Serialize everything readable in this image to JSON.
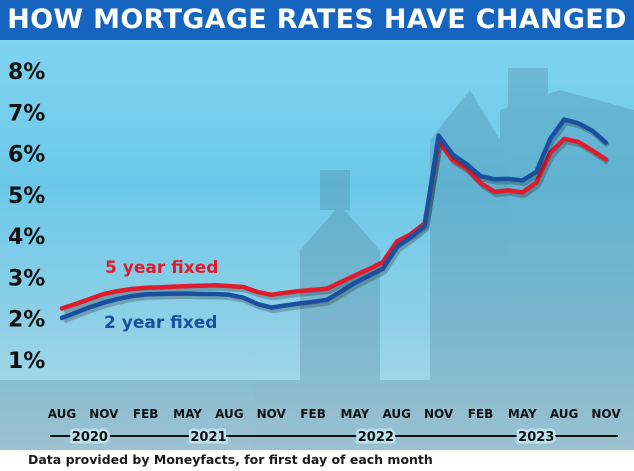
{
  "title": "HOW MORTGAGE RATES HAVE CHANGED",
  "source_note": "Data provided by Moneyfacts, for first day of each month",
  "colors": {
    "title_bg": "#1565c0",
    "five_year": "#e21b2c",
    "two_year": "#1a4fa0",
    "axis_text": "#111111"
  },
  "chart_data": {
    "type": "line",
    "title": "HOW MORTGAGE RATES HAVE CHANGED",
    "xlabel": "",
    "ylabel": "",
    "ylim": [
      0,
      8
    ],
    "y_ticks": [
      "1%",
      "2%",
      "3%",
      "4%",
      "5%",
      "6%",
      "7%",
      "8%"
    ],
    "x_tick_labels": [
      "AUG",
      "NOV",
      "FEB",
      "MAY",
      "AUG",
      "NOV",
      "FEB",
      "MAY",
      "AUG",
      "NOV",
      "FEB",
      "MAY",
      "AUG",
      "NOV"
    ],
    "year_labels": [
      "2020",
      "2021",
      "2022",
      "2023"
    ],
    "x": [
      "2020-08",
      "2020-09",
      "2020-10",
      "2020-11",
      "2020-12",
      "2021-01",
      "2021-02",
      "2021-03",
      "2021-04",
      "2021-05",
      "2021-06",
      "2021-07",
      "2021-08",
      "2021-09",
      "2021-10",
      "2021-11",
      "2021-12",
      "2022-01",
      "2022-02",
      "2022-03",
      "2022-04",
      "2022-05",
      "2022-06",
      "2022-07",
      "2022-08",
      "2022-09",
      "2022-10",
      "2022-11",
      "2022-12",
      "2023-01",
      "2023-02",
      "2023-03",
      "2023-04",
      "2023-05",
      "2023-06",
      "2023-07",
      "2023-08",
      "2023-09",
      "2023-10",
      "2023-11"
    ],
    "series": [
      {
        "name": "5 year fixed",
        "values": [
          2.22,
          2.33,
          2.45,
          2.57,
          2.64,
          2.69,
          2.72,
          2.73,
          2.75,
          2.76,
          2.77,
          2.78,
          2.76,
          2.74,
          2.62,
          2.55,
          2.6,
          2.64,
          2.67,
          2.7,
          2.86,
          3.02,
          3.17,
          3.34,
          3.84,
          4.02,
          4.28,
          6.28,
          5.82,
          5.62,
          5.26,
          5.05,
          5.08,
          5.03,
          5.27,
          5.99,
          6.33,
          6.26,
          6.05,
          5.83
        ]
      },
      {
        "name": "2 year fixed",
        "values": [
          1.99,
          2.12,
          2.25,
          2.36,
          2.45,
          2.52,
          2.56,
          2.57,
          2.58,
          2.58,
          2.57,
          2.57,
          2.55,
          2.48,
          2.33,
          2.24,
          2.29,
          2.34,
          2.38,
          2.43,
          2.63,
          2.84,
          3.01,
          3.18,
          3.71,
          3.95,
          4.22,
          6.41,
          5.95,
          5.72,
          5.43,
          5.35,
          5.36,
          5.32,
          5.53,
          6.33,
          6.8,
          6.71,
          6.53,
          6.24
        ]
      }
    ],
    "legend": "inline labels on lines",
    "grid": false
  }
}
